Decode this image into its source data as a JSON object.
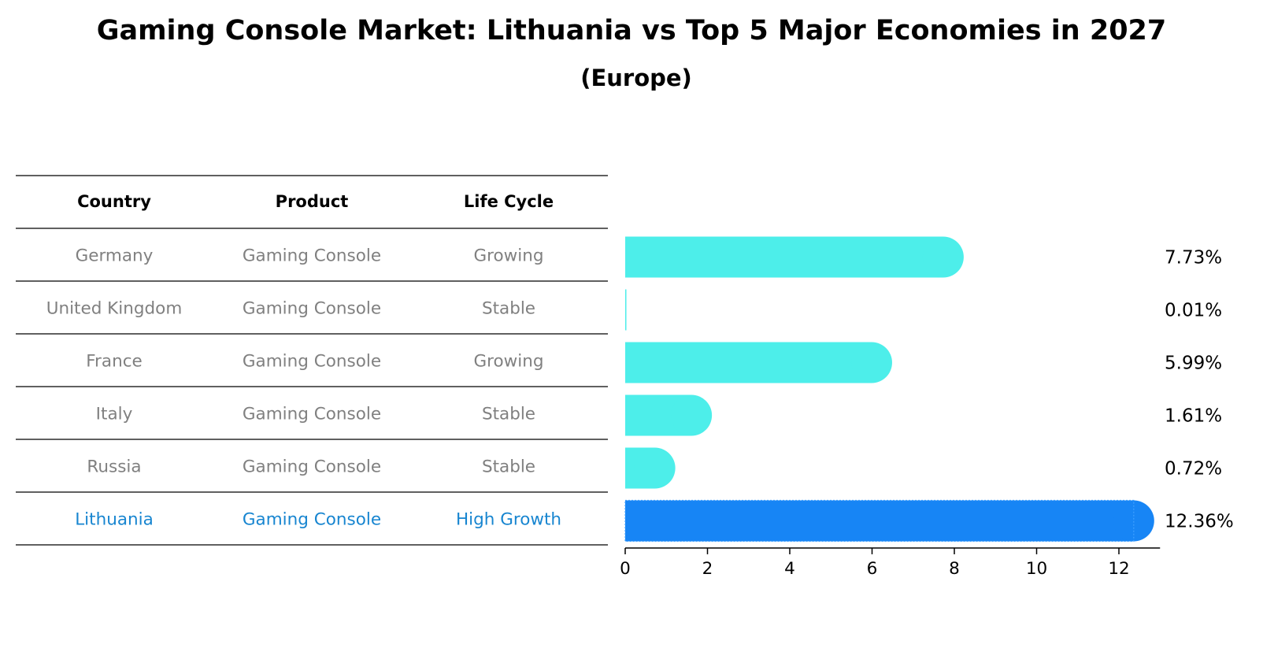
{
  "chart_data": {
    "type": "bar",
    "orientation": "horizontal",
    "title": "Gaming Console Market: Lithuania vs Top 5 Major Economies in 2027",
    "subtitle": "(Europe)",
    "table": {
      "columns": [
        "Country",
        "Product",
        "Life Cycle"
      ],
      "rows": [
        {
          "country": "Germany",
          "product": "Gaming Console",
          "life_cycle": "Growing",
          "highlight": false
        },
        {
          "country": "United Kingdom",
          "product": "Gaming Console",
          "life_cycle": "Stable",
          "highlight": false
        },
        {
          "country": "France",
          "product": "Gaming Console",
          "life_cycle": "Growing",
          "highlight": false
        },
        {
          "country": "Italy",
          "product": "Gaming Console",
          "life_cycle": "Stable",
          "highlight": false
        },
        {
          "country": "Russia",
          "product": "Gaming Console",
          "life_cycle": "Stable",
          "highlight": false
        },
        {
          "country": "Lithuania",
          "product": "Gaming Console",
          "life_cycle": "High Growth",
          "highlight": true
        }
      ]
    },
    "categories": [
      "Germany",
      "United Kingdom",
      "France",
      "Italy",
      "Russia",
      "Lithuania"
    ],
    "values": [
      7.73,
      0.01,
      5.99,
      1.61,
      0.72,
      12.36
    ],
    "value_labels": [
      "7.73%",
      "0.01%",
      "5.99%",
      "1.61%",
      "0.72%",
      "12.36%"
    ],
    "xlim": [
      0,
      13
    ],
    "xticks": [
      0,
      2,
      4,
      6,
      8,
      10,
      12
    ],
    "xlabel": "",
    "ylabel": "",
    "grid": false,
    "colors": {
      "bar": "#4deeea",
      "highlight_bar": "#1785f5",
      "text_muted": "#808080",
      "text_highlight": "#1785d0"
    }
  }
}
